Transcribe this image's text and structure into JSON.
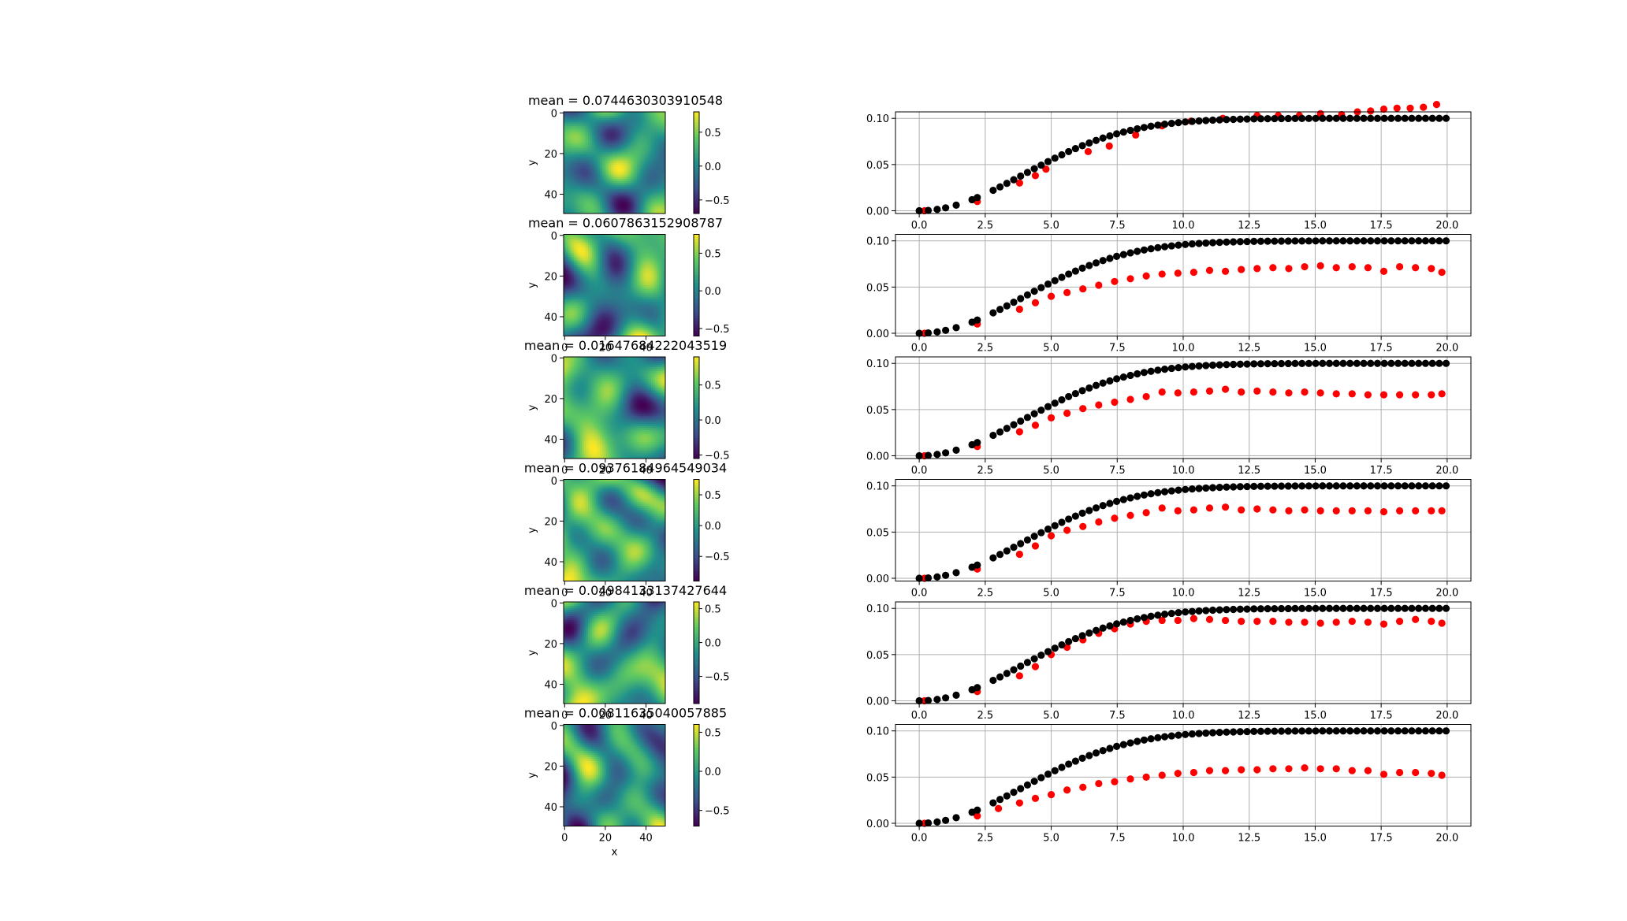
{
  "figure": {
    "background": "#ffffff"
  },
  "colors": {
    "series_a": "#ff0000",
    "series_b": "#000000",
    "grid": "#b0b0b0",
    "colormap": [
      "#440154",
      "#3b528b",
      "#21918c",
      "#5ec962",
      "#fde725"
    ]
  },
  "chart_data": [
    {
      "type": "heatmap",
      "title": "mean = 0.0744630303910548",
      "xlabel": "",
      "ylabel": "y",
      "x_ticks": [],
      "y_ticks": [
        0,
        20,
        40
      ],
      "grid_size": 50,
      "colorbar_ticks": [
        0.5,
        0,
        -0.5
      ],
      "colorbar_range": [
        -0.7,
        0.8
      ],
      "seed": 11
    },
    {
      "type": "heatmap",
      "title": "mean = 0.0607863152908787",
      "xlabel": "",
      "ylabel": "y",
      "x_ticks": [
        0,
        20,
        40
      ],
      "y_ticks": [
        0,
        20,
        40
      ],
      "grid_size": 50,
      "colorbar_ticks": [
        0.5,
        0,
        -0.5
      ],
      "colorbar_range": [
        -0.6,
        0.75
      ],
      "seed": 23
    },
    {
      "type": "heatmap",
      "title": "mean = 0.01647684222043519",
      "xlabel": "",
      "ylabel": "y",
      "x_ticks": [
        0,
        20,
        40
      ],
      "y_ticks": [
        0,
        20,
        40
      ],
      "grid_size": 50,
      "colorbar_ticks": [
        0.5,
        0,
        -0.5
      ],
      "colorbar_range": [
        -0.55,
        0.9
      ],
      "seed": 37
    },
    {
      "type": "heatmap",
      "title": "mean = 0.09376184964549034",
      "xlabel": "",
      "ylabel": "y",
      "x_ticks": [
        0,
        20,
        40
      ],
      "y_ticks": [
        0,
        20,
        40
      ],
      "grid_size": 50,
      "colorbar_ticks": [
        0.5,
        0,
        -0.5
      ],
      "colorbar_range": [
        -0.9,
        0.75
      ],
      "seed": 41
    },
    {
      "type": "heatmap",
      "title": "mean = 0.04984133137427644",
      "xlabel": "",
      "ylabel": "y",
      "x_ticks": [
        0,
        20,
        40
      ],
      "y_ticks": [
        0,
        20,
        40
      ],
      "grid_size": 50,
      "colorbar_ticks": [
        0.5,
        0,
        -0.5
      ],
      "colorbar_range": [
        -0.9,
        0.6
      ],
      "seed": 53
    },
    {
      "type": "heatmap",
      "title": "mean = 0.00811635040057885",
      "xlabel": "x",
      "ylabel": "y",
      "x_ticks": [
        0,
        20,
        40
      ],
      "y_ticks": [
        0,
        20,
        40
      ],
      "grid_size": 50,
      "colorbar_ticks": [
        0.5,
        0,
        -0.5
      ],
      "colorbar_range": [
        -0.7,
        0.6
      ],
      "seed": 67
    },
    {
      "type": "scatter",
      "xlim": [
        -0.9,
        20.9
      ],
      "ylim": [
        -0.003,
        0.107
      ],
      "x_ticks": [
        0.0,
        2.5,
        5.0,
        7.5,
        10.0,
        12.5,
        15.0,
        17.5,
        20.0
      ],
      "y_ticks": [
        0.0,
        0.05,
        0.1
      ],
      "grid": true,
      "series": [
        {
          "color": "#ff0000",
          "x": [
            0.2,
            2.2,
            3.8,
            4.4,
            4.8,
            6.4,
            7.2,
            8.2,
            9.2,
            10.3,
            11.5,
            12.8,
            13.6,
            14.4,
            15.2,
            16.0,
            16.6,
            17.1,
            17.6,
            18.1,
            18.6,
            19.1,
            19.6
          ],
          "y": [
            0.0,
            0.01,
            0.03,
            0.038,
            0.045,
            0.064,
            0.07,
            0.082,
            0.092,
            0.097,
            0.1,
            0.103,
            0.103,
            0.103,
            0.105,
            0.104,
            0.107,
            0.108,
            0.11,
            0.111,
            0.111,
            0.112,
            0.115
          ]
        }
      ]
    },
    {
      "type": "scatter",
      "xlim": [
        -0.9,
        20.9
      ],
      "ylim": [
        -0.003,
        0.107
      ],
      "x_ticks": [
        0.0,
        2.5,
        5.0,
        7.5,
        10.0,
        12.5,
        15.0,
        17.5,
        20.0
      ],
      "y_ticks": [
        0.0,
        0.05,
        0.1
      ],
      "grid": true,
      "series": [
        {
          "color": "#ff0000",
          "x": [
            0.2,
            2.2,
            3.8,
            4.4,
            5.0,
            5.6,
            6.2,
            6.8,
            7.4,
            8.0,
            8.6,
            9.2,
            9.8,
            10.4,
            11.0,
            11.6,
            12.2,
            12.8,
            13.4,
            14.0,
            14.6,
            15.2,
            15.8,
            16.4,
            17.0,
            17.6,
            18.2,
            18.8,
            19.4,
            19.8
          ],
          "y": [
            0.0,
            0.01,
            0.026,
            0.033,
            0.04,
            0.044,
            0.048,
            0.052,
            0.056,
            0.059,
            0.062,
            0.064,
            0.065,
            0.066,
            0.068,
            0.067,
            0.069,
            0.07,
            0.071,
            0.07,
            0.072,
            0.073,
            0.071,
            0.072,
            0.071,
            0.067,
            0.072,
            0.071,
            0.07,
            0.066
          ]
        }
      ]
    },
    {
      "type": "scatter",
      "xlim": [
        -0.9,
        20.9
      ],
      "ylim": [
        -0.003,
        0.107
      ],
      "x_ticks": [
        0.0,
        2.5,
        5.0,
        7.5,
        10.0,
        12.5,
        15.0,
        17.5,
        20.0
      ],
      "y_ticks": [
        0.0,
        0.05,
        0.1
      ],
      "grid": true,
      "series": [
        {
          "color": "#ff0000",
          "x": [
            0.2,
            2.2,
            3.8,
            4.4,
            5.0,
            5.6,
            6.2,
            6.8,
            7.4,
            8.0,
            8.6,
            9.2,
            9.8,
            10.4,
            11.0,
            11.6,
            12.2,
            12.8,
            13.4,
            14.0,
            14.6,
            15.2,
            15.8,
            16.4,
            17.0,
            17.6,
            18.2,
            18.8,
            19.4,
            19.8
          ],
          "y": [
            0.0,
            0.01,
            0.026,
            0.033,
            0.041,
            0.046,
            0.051,
            0.055,
            0.058,
            0.061,
            0.064,
            0.069,
            0.068,
            0.069,
            0.07,
            0.072,
            0.069,
            0.07,
            0.069,
            0.068,
            0.069,
            0.068,
            0.067,
            0.067,
            0.066,
            0.066,
            0.066,
            0.066,
            0.066,
            0.067
          ]
        }
      ]
    },
    {
      "type": "scatter",
      "xlim": [
        -0.9,
        20.9
      ],
      "ylim": [
        -0.003,
        0.107
      ],
      "x_ticks": [
        0.0,
        2.5,
        5.0,
        7.5,
        10.0,
        12.5,
        15.0,
        17.5,
        20.0
      ],
      "y_ticks": [
        0.0,
        0.05,
        0.1
      ],
      "grid": true,
      "series": [
        {
          "color": "#ff0000",
          "x": [
            0.2,
            2.2,
            3.8,
            4.4,
            5.0,
            5.6,
            6.2,
            6.8,
            7.4,
            8.0,
            8.6,
            9.2,
            9.8,
            10.4,
            11.0,
            11.6,
            12.2,
            12.8,
            13.4,
            14.0,
            14.6,
            15.2,
            15.8,
            16.4,
            17.0,
            17.6,
            18.2,
            18.8,
            19.4,
            19.8
          ],
          "y": [
            0.0,
            0.01,
            0.026,
            0.035,
            0.046,
            0.052,
            0.056,
            0.061,
            0.065,
            0.068,
            0.071,
            0.076,
            0.073,
            0.074,
            0.076,
            0.077,
            0.074,
            0.075,
            0.074,
            0.073,
            0.074,
            0.073,
            0.073,
            0.073,
            0.073,
            0.072,
            0.073,
            0.073,
            0.073,
            0.073
          ]
        }
      ]
    },
    {
      "type": "scatter",
      "xlim": [
        -0.9,
        20.9
      ],
      "ylim": [
        -0.003,
        0.107
      ],
      "x_ticks": [
        0.0,
        2.5,
        5.0,
        7.5,
        10.0,
        12.5,
        15.0,
        17.5,
        20.0
      ],
      "y_ticks": [
        0.0,
        0.05,
        0.1
      ],
      "grid": true,
      "series": [
        {
          "color": "#ff0000",
          "x": [
            0.2,
            2.2,
            3.8,
            4.4,
            5.0,
            5.6,
            6.2,
            6.8,
            7.4,
            8.0,
            8.6,
            9.2,
            9.8,
            10.4,
            11.0,
            11.6,
            12.2,
            12.8,
            13.4,
            14.0,
            14.6,
            15.2,
            15.8,
            16.4,
            17.0,
            17.6,
            18.2,
            18.8,
            19.4,
            19.8
          ],
          "y": [
            0.0,
            0.01,
            0.027,
            0.037,
            0.05,
            0.058,
            0.066,
            0.073,
            0.078,
            0.083,
            0.086,
            0.087,
            0.087,
            0.089,
            0.088,
            0.087,
            0.086,
            0.086,
            0.086,
            0.085,
            0.085,
            0.084,
            0.085,
            0.086,
            0.085,
            0.083,
            0.086,
            0.088,
            0.086,
            0.084
          ]
        }
      ]
    },
    {
      "type": "scatter",
      "xlim": [
        -0.9,
        20.9
      ],
      "ylim": [
        -0.003,
        0.107
      ],
      "x_ticks": [
        0.0,
        2.5,
        5.0,
        7.5,
        10.0,
        12.5,
        15.0,
        17.5,
        20.0
      ],
      "y_ticks": [
        0.0,
        0.05,
        0.1
      ],
      "grid": true,
      "series": [
        {
          "color": "#ff0000",
          "x": [
            0.2,
            2.2,
            3.0,
            3.8,
            4.4,
            5.0,
            5.6,
            6.2,
            6.8,
            7.4,
            8.0,
            8.6,
            9.2,
            9.8,
            10.4,
            11.0,
            11.6,
            12.2,
            12.8,
            13.4,
            14.0,
            14.6,
            15.2,
            15.8,
            16.4,
            17.0,
            17.6,
            18.2,
            18.8,
            19.4,
            19.8
          ],
          "y": [
            0.0,
            0.008,
            0.016,
            0.022,
            0.027,
            0.031,
            0.036,
            0.039,
            0.043,
            0.045,
            0.048,
            0.05,
            0.052,
            0.054,
            0.055,
            0.057,
            0.057,
            0.058,
            0.058,
            0.059,
            0.059,
            0.06,
            0.059,
            0.059,
            0.057,
            0.057,
            0.053,
            0.055,
            0.055,
            0.054,
            0.052
          ]
        }
      ]
    }
  ]
}
